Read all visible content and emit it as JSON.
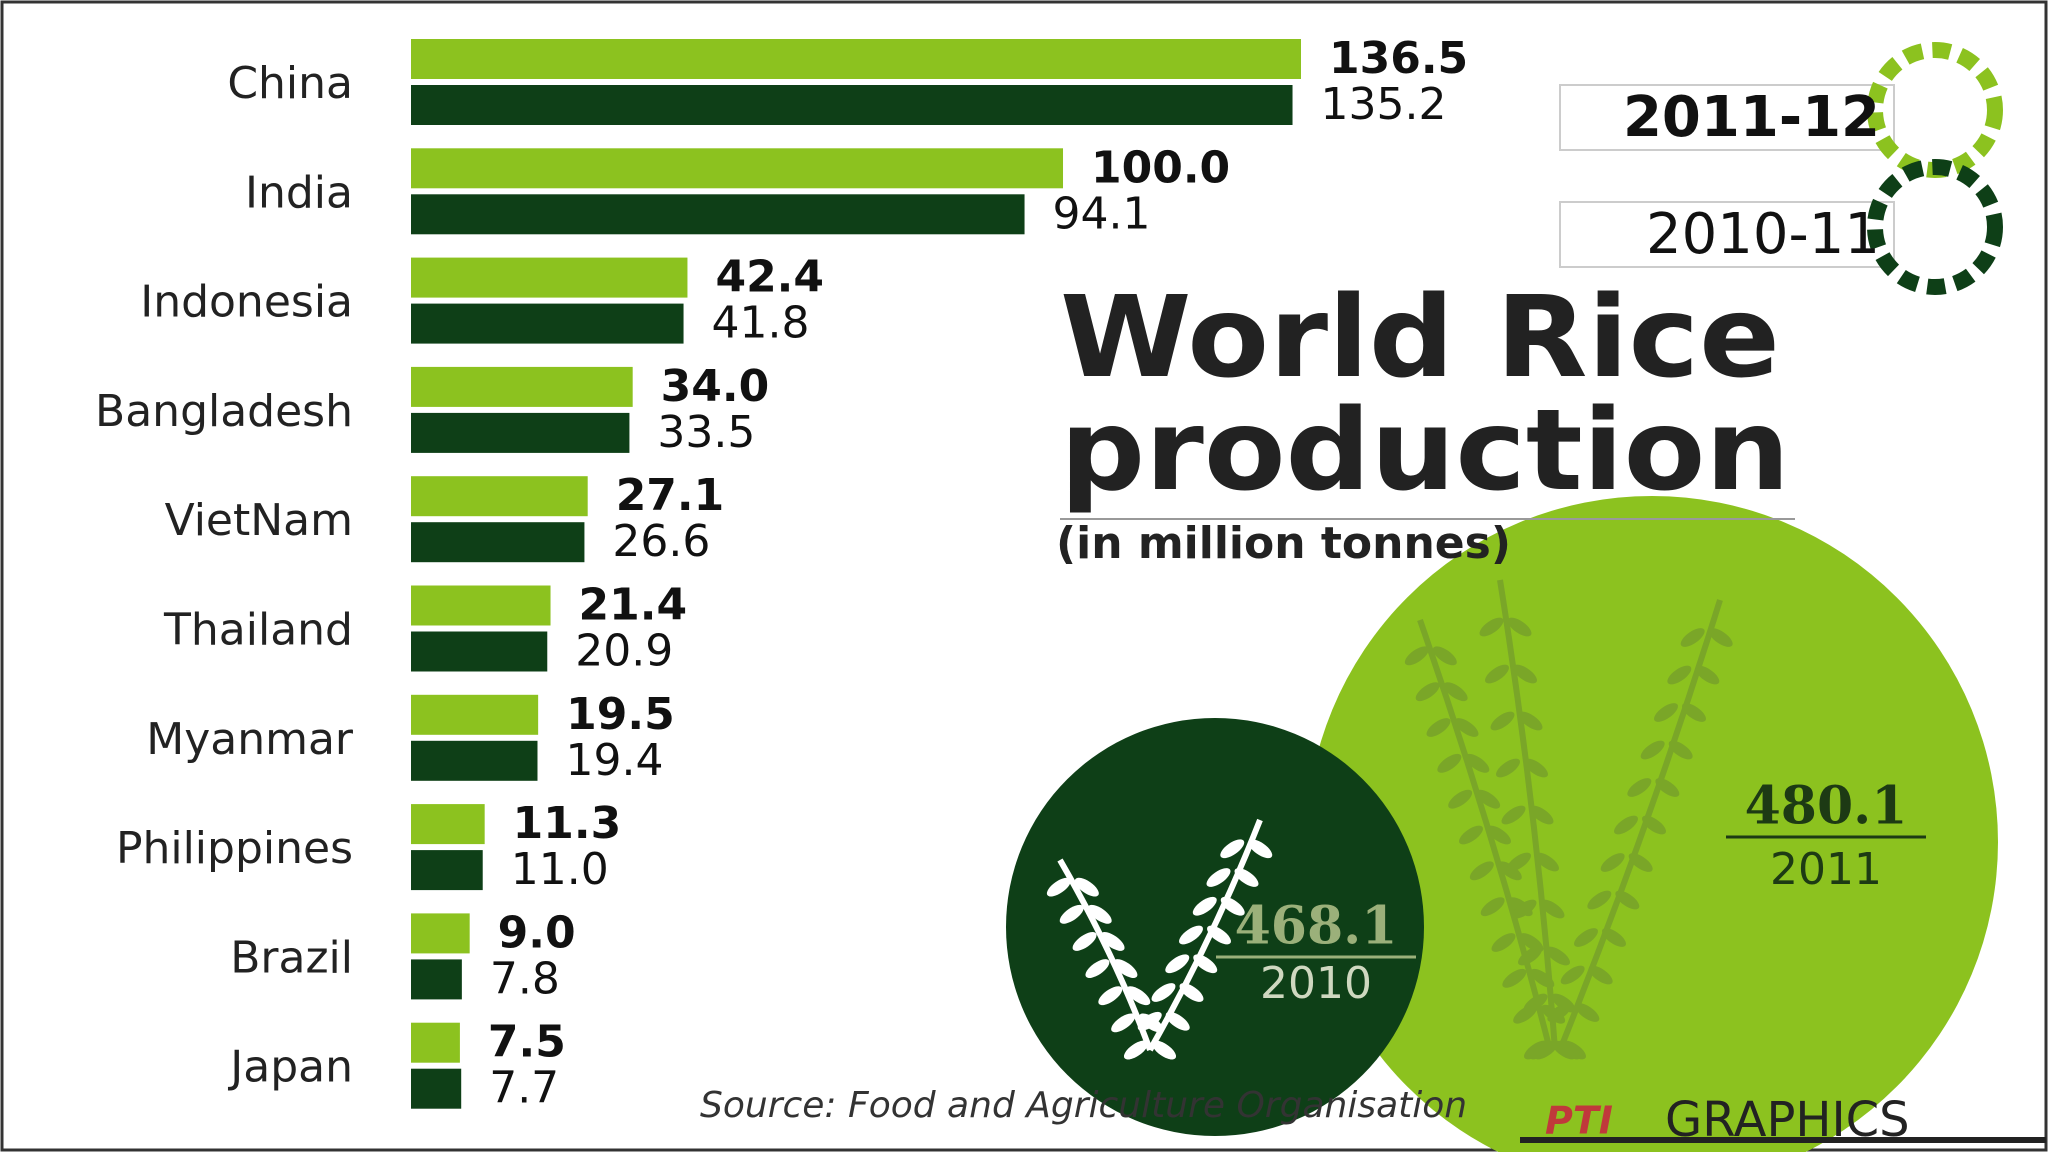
{
  "chart_data": {
    "type": "bar",
    "orientation": "horizontal",
    "title": [
      "World Rice",
      "production"
    ],
    "subtitle": "(in million tonnes)",
    "categories": [
      "China",
      "India",
      "Indonesia",
      "Bangladesh",
      "VietNam",
      "Thailand",
      "Myanmar",
      "Philippines",
      "Brazil",
      "Japan"
    ],
    "series": [
      {
        "name": "2011-12",
        "color": "#8cc21f",
        "values": [
          136.5,
          100.0,
          42.4,
          34.0,
          27.1,
          21.4,
          19.5,
          11.3,
          9.0,
          7.5
        ],
        "value_labels": [
          "136.5",
          "100.0",
          "42.4",
          "34.0",
          "27.1",
          "21.4",
          "19.5",
          "11.3",
          "9.0",
          "7.5"
        ]
      },
      {
        "name": "2010-11",
        "color": "#0e3f17",
        "values": [
          135.2,
          94.1,
          41.8,
          33.5,
          26.6,
          20.9,
          19.4,
          11.0,
          7.8,
          7.7
        ],
        "value_labels": [
          "135.2",
          "94.1",
          "41.8",
          "33.5",
          "26.6",
          "20.9",
          "19.4",
          "11.0",
          "7.8",
          "7.7"
        ]
      }
    ],
    "totals": {
      "values": [
        468.1,
        480.1
      ],
      "labels": [
        "2010",
        "2011"
      ],
      "colors": [
        "#0e3f17",
        "#8cc21f"
      ]
    },
    "source": "Source: Food and Agriculture Organisation",
    "credit": {
      "logo": "PTI",
      "text": "GRAPHICS"
    }
  }
}
